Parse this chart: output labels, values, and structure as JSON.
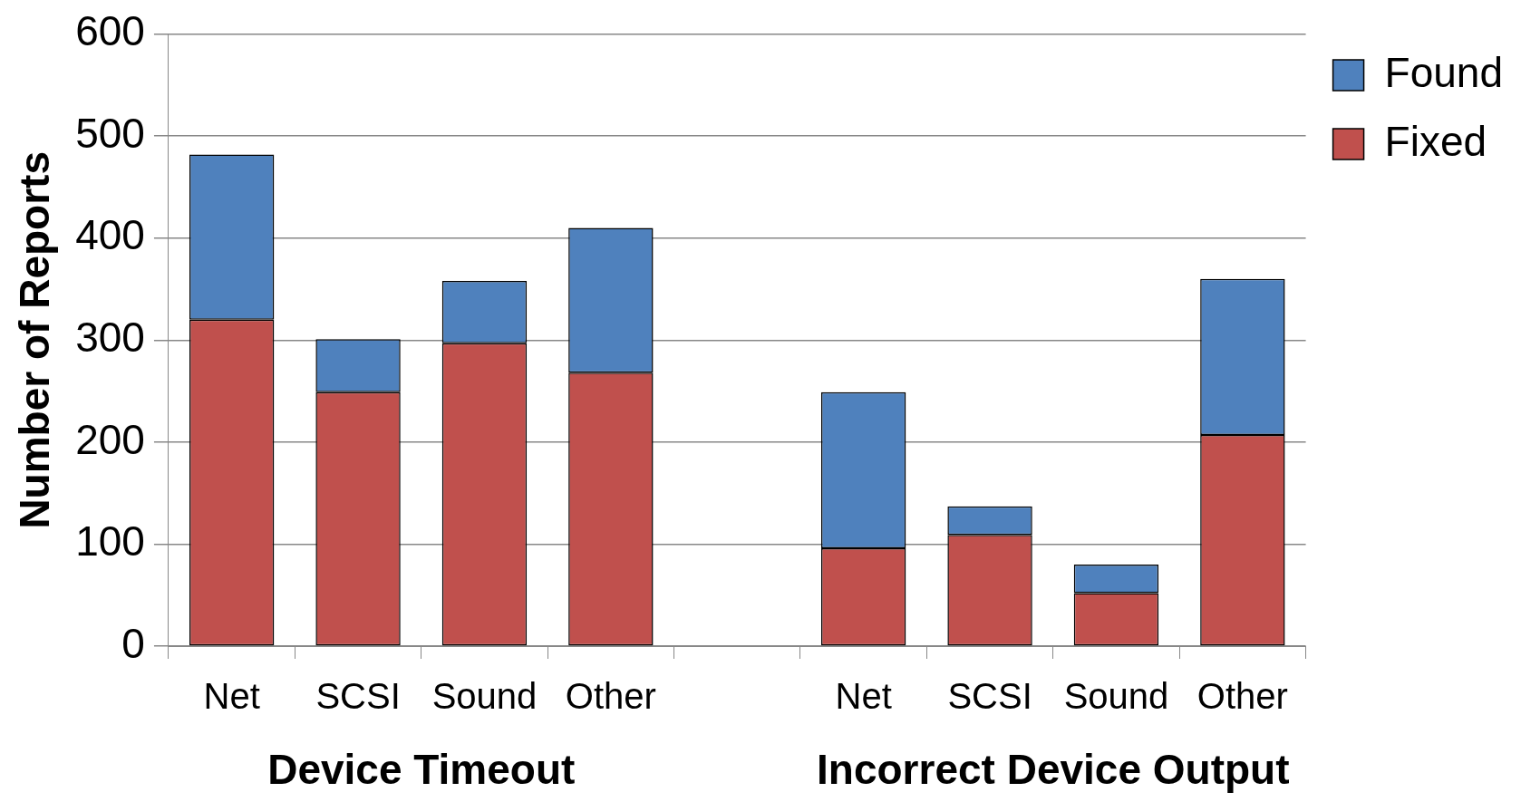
{
  "chart_data": {
    "type": "bar",
    "stacked": true,
    "ylabel": "Number of Reports",
    "categories": [
      "Net",
      "SCSI",
      "Sound",
      "Other",
      null,
      "Net",
      "SCSI",
      "Sound",
      "Other"
    ],
    "series": [
      {
        "name": "Fixed",
        "color": "#c0504d",
        "values": [
          320,
          249,
          297,
          268,
          null,
          96,
          109,
          52,
          207
        ]
      },
      {
        "name": "Found",
        "color": "#4f81bd",
        "values": [
          162,
          52,
          61,
          142,
          null,
          153,
          28,
          28,
          153
        ]
      }
    ],
    "ylim": [
      0,
      600
    ],
    "yticks": [
      0,
      100,
      200,
      300,
      400,
      500,
      600
    ],
    "grid": "y",
    "legend": "top right",
    "annotations": [
      "Device Timeout",
      "Incorrect Device Output"
    ]
  }
}
